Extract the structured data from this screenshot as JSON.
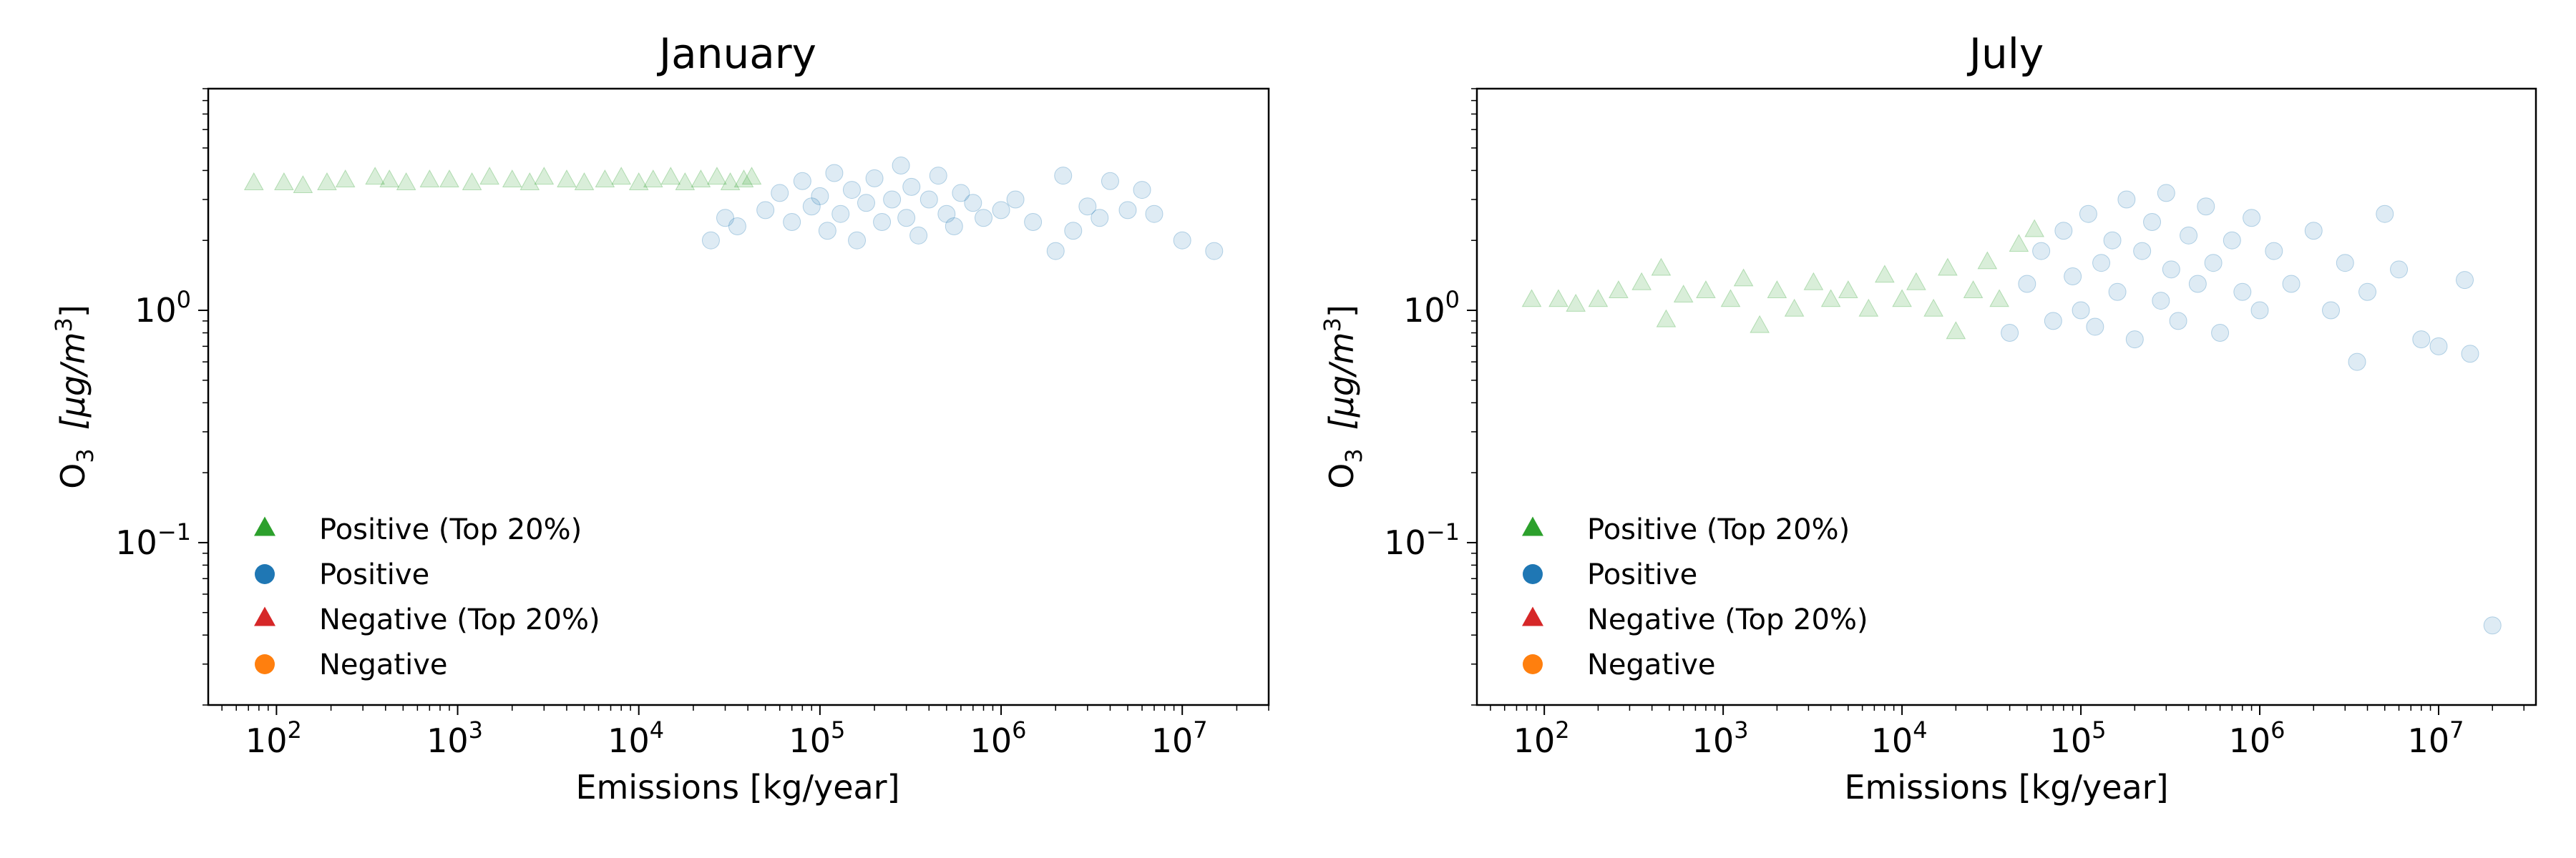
{
  "chart_data": [
    {
      "type": "scatter",
      "title": "January",
      "xlabel": "Emissions [kg/year]",
      "ylabel": "O",
      "ylabel_sub": "3",
      "ylabel_unit": "[μg/m",
      "ylabel_sup": "3",
      "ylabel_close": "]",
      "x_scale": "log",
      "y_scale": "log",
      "xlim": [
        42,
        30000000
      ],
      "ylim": [
        0.02,
        9
      ],
      "x_ticks": [
        {
          "value": 100,
          "base": "10",
          "exp": "2"
        },
        {
          "value": 1000,
          "base": "10",
          "exp": "3"
        },
        {
          "value": 10000,
          "base": "10",
          "exp": "4"
        },
        {
          "value": 100000,
          "base": "10",
          "exp": "5"
        },
        {
          "value": 1000000,
          "base": "10",
          "exp": "6"
        },
        {
          "value": 10000000,
          "base": "10",
          "exp": "7"
        }
      ],
      "y_ticks": [
        {
          "value": 1,
          "base": "10",
          "exp": "0"
        },
        {
          "value": 0.1,
          "base": "10",
          "exp": "−1"
        }
      ],
      "legend_position": "lower-left",
      "legend": [
        {
          "label": "Positive (Top 20%)",
          "marker": "triangle",
          "color": "#2ca02c"
        },
        {
          "label": "Positive",
          "marker": "circle",
          "color": "#1f77b4"
        },
        {
          "label": "Negative (Top 20%)",
          "marker": "triangle",
          "color": "#d62728"
        },
        {
          "label": "Negative",
          "marker": "circle",
          "color": "#ff7f0e"
        }
      ],
      "series": [
        {
          "name": "Positive (Top 20%)",
          "marker": "triangle",
          "color": "#2ca02c",
          "points": [
            [
              75,
              3.5
            ],
            [
              110,
              3.5
            ],
            [
              140,
              3.4
            ],
            [
              190,
              3.5
            ],
            [
              240,
              3.6
            ],
            [
              350,
              3.7
            ],
            [
              420,
              3.6
            ],
            [
              520,
              3.5
            ],
            [
              700,
              3.6
            ],
            [
              900,
              3.6
            ],
            [
              1200,
              3.5
            ],
            [
              1500,
              3.7
            ],
            [
              2000,
              3.6
            ],
            [
              2500,
              3.5
            ],
            [
              3000,
              3.7
            ],
            [
              4000,
              3.6
            ],
            [
              5000,
              3.5
            ],
            [
              6500,
              3.6
            ],
            [
              8000,
              3.7
            ],
            [
              10000,
              3.5
            ],
            [
              12000,
              3.6
            ],
            [
              15000,
              3.7
            ],
            [
              18000,
              3.5
            ],
            [
              22000,
              3.6
            ],
            [
              27000,
              3.7
            ],
            [
              32000,
              3.5
            ],
            [
              38000,
              3.6
            ],
            [
              42000,
              3.7
            ]
          ]
        },
        {
          "name": "Positive",
          "marker": "circle",
          "color": "#1f77b4",
          "points": [
            [
              25000,
              2.0
            ],
            [
              30000,
              2.5
            ],
            [
              35000,
              2.3
            ],
            [
              50000,
              2.7
            ],
            [
              60000,
              3.2
            ],
            [
              70000,
              2.4
            ],
            [
              80000,
              3.6
            ],
            [
              90000,
              2.8
            ],
            [
              100000,
              3.1
            ],
            [
              110000,
              2.2
            ],
            [
              120000,
              3.9
            ],
            [
              130000,
              2.6
            ],
            [
              150000,
              3.3
            ],
            [
              160000,
              2.0
            ],
            [
              180000,
              2.9
            ],
            [
              200000,
              3.7
            ],
            [
              220000,
              2.4
            ],
            [
              250000,
              3.0
            ],
            [
              280000,
              4.2
            ],
            [
              300000,
              2.5
            ],
            [
              320000,
              3.4
            ],
            [
              350000,
              2.1
            ],
            [
              400000,
              3.0
            ],
            [
              450000,
              3.8
            ],
            [
              500000,
              2.6
            ],
            [
              550000,
              2.3
            ],
            [
              600000,
              3.2
            ],
            [
              700000,
              2.9
            ],
            [
              800000,
              2.5
            ],
            [
              1000000,
              2.7
            ],
            [
              1200000,
              3.0
            ],
            [
              1500000,
              2.4
            ],
            [
              2000000,
              1.8
            ],
            [
              2200000,
              3.8
            ],
            [
              2500000,
              2.2
            ],
            [
              3000000,
              2.8
            ],
            [
              3500000,
              2.5
            ],
            [
              4000000,
              3.6
            ],
            [
              5000000,
              2.7
            ],
            [
              6000000,
              3.3
            ],
            [
              7000000,
              2.6
            ],
            [
              10000000,
              2.0
            ],
            [
              15000000,
              1.8
            ]
          ]
        }
      ]
    },
    {
      "type": "scatter",
      "title": "July",
      "xlabel": "Emissions [kg/year]",
      "ylabel": "O",
      "ylabel_sub": "3",
      "ylabel_unit": "[μg/m",
      "ylabel_sup": "3",
      "ylabel_close": "]",
      "x_scale": "log",
      "y_scale": "log",
      "xlim": [
        42,
        35000000
      ],
      "ylim": [
        0.02,
        9
      ],
      "x_ticks": [
        {
          "value": 100,
          "base": "10",
          "exp": "2"
        },
        {
          "value": 1000,
          "base": "10",
          "exp": "3"
        },
        {
          "value": 10000,
          "base": "10",
          "exp": "4"
        },
        {
          "value": 100000,
          "base": "10",
          "exp": "5"
        },
        {
          "value": 1000000,
          "base": "10",
          "exp": "6"
        },
        {
          "value": 10000000,
          "base": "10",
          "exp": "7"
        }
      ],
      "y_ticks": [
        {
          "value": 1,
          "base": "10",
          "exp": "0"
        },
        {
          "value": 0.1,
          "base": "10",
          "exp": "−1"
        }
      ],
      "legend_position": "lower-left",
      "legend": [
        {
          "label": "Positive (Top 20%)",
          "marker": "triangle",
          "color": "#2ca02c"
        },
        {
          "label": "Positive",
          "marker": "circle",
          "color": "#1f77b4"
        },
        {
          "label": "Negative (Top 20%)",
          "marker": "triangle",
          "color": "#d62728"
        },
        {
          "label": "Negative",
          "marker": "circle",
          "color": "#ff7f0e"
        }
      ],
      "series": [
        {
          "name": "Positive (Top 20%)",
          "marker": "triangle",
          "color": "#2ca02c",
          "points": [
            [
              85,
              1.1
            ],
            [
              120,
              1.1
            ],
            [
              150,
              1.05
            ],
            [
              200,
              1.1
            ],
            [
              260,
              1.2
            ],
            [
              350,
              1.3
            ],
            [
              450,
              1.5
            ],
            [
              480,
              0.9
            ],
            [
              600,
              1.15
            ],
            [
              800,
              1.2
            ],
            [
              1100,
              1.1
            ],
            [
              1300,
              1.35
            ],
            [
              1600,
              0.85
            ],
            [
              2000,
              1.2
            ],
            [
              2500,
              1.0
            ],
            [
              3200,
              1.3
            ],
            [
              4000,
              1.1
            ],
            [
              5000,
              1.2
            ],
            [
              6500,
              1.0
            ],
            [
              8000,
              1.4
            ],
            [
              10000,
              1.1
            ],
            [
              12000,
              1.3
            ],
            [
              15000,
              1.0
            ],
            [
              18000,
              1.5
            ],
            [
              20000,
              0.8
            ],
            [
              25000,
              1.2
            ],
            [
              30000,
              1.6
            ],
            [
              35000,
              1.1
            ],
            [
              45000,
              1.9
            ],
            [
              55000,
              2.2
            ]
          ]
        },
        {
          "name": "Positive",
          "marker": "circle",
          "color": "#1f77b4",
          "points": [
            [
              40000,
              0.8
            ],
            [
              50000,
              1.3
            ],
            [
              60000,
              1.8
            ],
            [
              70000,
              0.9
            ],
            [
              80000,
              2.2
            ],
            [
              90000,
              1.4
            ],
            [
              100000,
              1.0
            ],
            [
              110000,
              2.6
            ],
            [
              120000,
              0.85
            ],
            [
              130000,
              1.6
            ],
            [
              150000,
              2.0
            ],
            [
              160000,
              1.2
            ],
            [
              180000,
              3.0
            ],
            [
              200000,
              0.75
            ],
            [
              220000,
              1.8
            ],
            [
              250000,
              2.4
            ],
            [
              280000,
              1.1
            ],
            [
              300000,
              3.2
            ],
            [
              320000,
              1.5
            ],
            [
              350000,
              0.9
            ],
            [
              400000,
              2.1
            ],
            [
              450000,
              1.3
            ],
            [
              500000,
              2.8
            ],
            [
              550000,
              1.6
            ],
            [
              600000,
              0.8
            ],
            [
              700000,
              2.0
            ],
            [
              800000,
              1.2
            ],
            [
              900000,
              2.5
            ],
            [
              1000000,
              1.0
            ],
            [
              1200000,
              1.8
            ],
            [
              1500000,
              1.3
            ],
            [
              2000000,
              2.2
            ],
            [
              2500000,
              1.0
            ],
            [
              3000000,
              1.6
            ],
            [
              3500000,
              0.6
            ],
            [
              4000000,
              1.2
            ],
            [
              5000000,
              2.6
            ],
            [
              6000000,
              1.5
            ],
            [
              8000000,
              0.75
            ],
            [
              10000000,
              0.7
            ],
            [
              14000000,
              1.35
            ],
            [
              15000000,
              0.65
            ],
            [
              20000000,
              0.044
            ]
          ]
        }
      ]
    }
  ]
}
